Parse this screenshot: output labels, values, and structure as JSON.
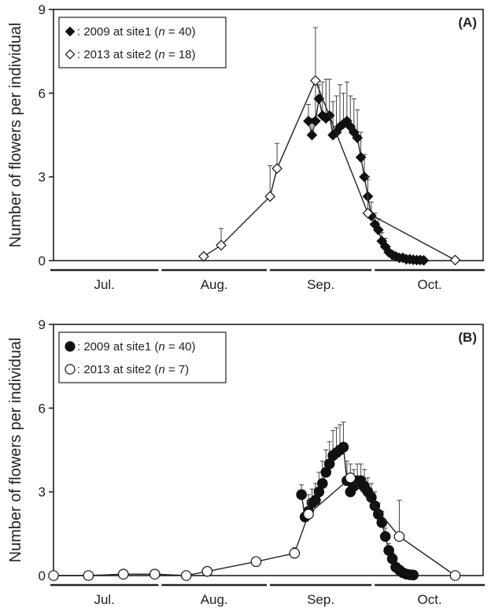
{
  "chart_data": [
    {
      "type": "line",
      "panel_label": "(A)",
      "ylabel": "Number of flowers per individual",
      "yticks": [
        "0",
        "3",
        "6",
        "9"
      ],
      "ylim": [
        0,
        9
      ],
      "xlim": [
        1,
        124
      ],
      "months": [
        {
          "label": "Jul.",
          "start": 1,
          "end": 31
        },
        {
          "label": "Aug.",
          "start": 32,
          "end": 62
        },
        {
          "label": "Sep.",
          "start": 63,
          "end": 92
        },
        {
          "label": "Oct.",
          "start": 93,
          "end": 124
        }
      ],
      "series": [
        {
          "legend": "2009 at site1",
          "n_label": "40",
          "marker": "diamond-filled",
          "x": [
            74,
            75,
            76,
            77,
            78,
            79,
            80,
            81,
            82,
            83,
            84,
            85,
            86,
            87,
            88,
            89,
            90,
            91,
            92,
            93,
            94,
            95,
            96,
            97,
            98,
            99,
            100,
            101,
            102,
            103,
            104,
            105,
            106,
            107
          ],
          "y": [
            5.0,
            4.5,
            5.0,
            5.8,
            5.2,
            5.1,
            5.2,
            4.5,
            4.6,
            4.8,
            4.9,
            5.0,
            4.8,
            4.6,
            4.4,
            3.7,
            3.0,
            2.3,
            1.6,
            1.3,
            1.1,
            0.7,
            0.5,
            0.3,
            0.2,
            0.15,
            0.1,
            0.1,
            0.05,
            0.05,
            0.03,
            0.02,
            0.02,
            0.01
          ],
          "err": [
            0.6,
            0.6,
            1.3,
            0.5,
            1.2,
            1.4,
            1.3,
            1.2,
            1.3,
            1.5,
            1.1,
            1.4,
            1.1,
            1.2,
            1.0,
            0.9,
            0.8,
            0.6,
            0.5,
            0.4,
            0.4,
            0.3,
            0.3,
            0.2,
            0.15,
            0.1,
            0.1,
            0.08,
            0.05,
            0.05,
            0.03,
            0.02,
            0.02,
            0.01
          ]
        },
        {
          "legend": "2013 at site2",
          "n_label": "18",
          "marker": "diamond-open",
          "x": [
            44,
            49,
            63,
            65,
            76,
            91,
            116
          ],
          "y": [
            0.15,
            0.55,
            2.3,
            3.3,
            6.45,
            1.7,
            0.02
          ],
          "err": [
            0.1,
            0.6,
            1.1,
            0.9,
            1.9,
            1.3,
            0.02
          ]
        }
      ]
    },
    {
      "type": "line",
      "panel_label": "(B)",
      "ylabel": "Number of flowers per individual",
      "yticks": [
        "0",
        "3",
        "6",
        "9"
      ],
      "ylim": [
        0,
        9
      ],
      "xlim": [
        1,
        124
      ],
      "months": [
        {
          "label": "Jul.",
          "start": 1,
          "end": 31
        },
        {
          "label": "Aug.",
          "start": 32,
          "end": 62
        },
        {
          "label": "Sep.",
          "start": 63,
          "end": 92
        },
        {
          "label": "Oct.",
          "start": 93,
          "end": 124
        }
      ],
      "series": [
        {
          "legend": "2009 at site1",
          "n_label": "40",
          "marker": "circle-filled",
          "x": [
            72,
            73,
            74,
            75,
            76,
            77,
            78,
            79,
            80,
            81,
            82,
            83,
            84,
            85,
            86,
            87,
            88,
            89,
            90,
            91,
            92,
            93,
            94,
            95,
            96,
            97,
            98,
            99,
            100,
            101,
            102,
            103,
            104
          ],
          "y": [
            2.9,
            2.1,
            2.3,
            2.6,
            2.7,
            3.0,
            3.3,
            3.7,
            4.0,
            4.3,
            4.4,
            4.5,
            4.6,
            3.4,
            3.0,
            3.2,
            3.4,
            3.4,
            3.2,
            3.0,
            2.8,
            2.5,
            2.2,
            1.9,
            1.4,
            0.9,
            0.6,
            0.3,
            0.2,
            0.1,
            0.05,
            0.03,
            0.02
          ],
          "err": [
            0.35,
            0.3,
            0.4,
            0.5,
            0.6,
            0.7,
            0.8,
            0.8,
            0.8,
            0.9,
            0.9,
            0.9,
            0.9,
            0.7,
            0.6,
            0.6,
            0.6,
            0.6,
            0.6,
            0.5,
            0.5,
            0.5,
            0.4,
            0.4,
            0.3,
            0.25,
            0.2,
            0.12,
            0.1,
            0.05,
            0.03,
            0.02,
            0.02
          ]
        },
        {
          "legend": "2013 at site2",
          "n_label": "7",
          "marker": "circle-open",
          "x": [
            1,
            11,
            21,
            30,
            39,
            45,
            59,
            70,
            74,
            86,
            100,
            116
          ],
          "y": [
            0.0,
            0.0,
            0.05,
            0.05,
            0.0,
            0.15,
            0.5,
            0.8,
            2.2,
            3.5,
            1.4,
            0.0
          ],
          "err": [
            0.0,
            0.0,
            0.08,
            0.06,
            0.0,
            0.05,
            0.1,
            0.2,
            0.7,
            0.5,
            1.3,
            0.0
          ]
        }
      ]
    }
  ]
}
